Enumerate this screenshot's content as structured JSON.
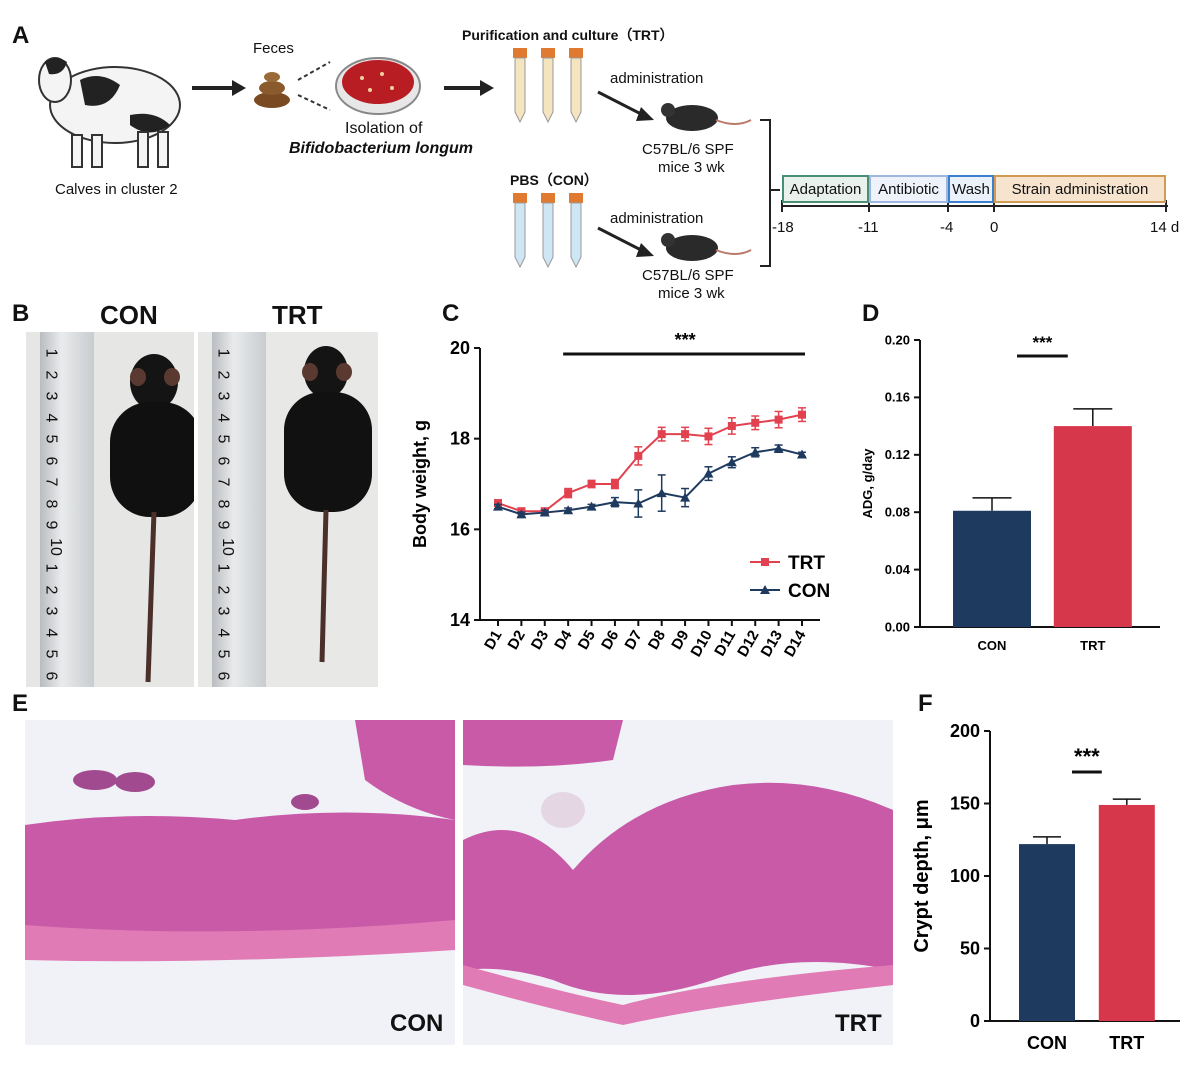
{
  "panel_labels": {
    "a": "A",
    "b": "B",
    "c": "C",
    "d": "D",
    "e": "E",
    "f": "F"
  },
  "panel_a": {
    "calves_label": "Calves in cluster 2",
    "feces_label": "Feces",
    "isolation_line1": "Isolation of",
    "isolation_line2": "Bifidobacterium longum",
    "purification_label": "Purification and culture（TRT）",
    "pbs_label": "PBS（CON）",
    "administration_top": "administration",
    "administration_bottom": "administration",
    "mice_top_line1": "C57BL/6 SPF",
    "mice_top_line2": "mice 3 wk",
    "mice_bottom_line1": "C57BL/6 SPF",
    "mice_bottom_line2": "mice 3 wk",
    "timeline": {
      "phases": [
        {
          "label": "Adaptation",
          "color": "#4a8f73",
          "fill": "#e8f1ec"
        },
        {
          "label": "Antibiotic",
          "color": "#9fb6e0",
          "fill": "#eef2fa"
        },
        {
          "label": "Wash",
          "color": "#3d7fcf",
          "fill": "#eaf1fb"
        },
        {
          "label": "Strain administration",
          "color": "#d19a55",
          "fill": "#f7e4cf"
        }
      ],
      "ticks": [
        "-18",
        "-11",
        "-4",
        "0",
        "14 d"
      ]
    }
  },
  "panel_b": {
    "con_title": "CON",
    "trt_title": "TRT",
    "ruler_marks": [
      "1",
      "2",
      "3",
      "4",
      "5",
      "6",
      "7",
      "8",
      "9",
      "10",
      "1",
      "2",
      "3",
      "4",
      "5",
      "6"
    ]
  },
  "panel_e": {
    "con_label": "CON",
    "trt_label": "TRT"
  },
  "chart_data": [
    {
      "type": "line",
      "panel": "C",
      "ylabel": "Body weight, g",
      "ylim": [
        14,
        20
      ],
      "yticks": [
        14,
        16,
        18,
        20
      ],
      "categories": [
        "D1",
        "D2",
        "D3",
        "D4",
        "D5",
        "D6",
        "D7",
        "D8",
        "D9",
        "D10",
        "D11",
        "D12",
        "D13",
        "D14"
      ],
      "significance": "***",
      "legend_position": "right",
      "series": [
        {
          "name": "TRT",
          "color": "#e2424f",
          "marker": "square",
          "values": [
            16.58,
            16.4,
            16.4,
            16.8,
            17.0,
            17.0,
            17.62,
            18.1,
            18.1,
            18.05,
            18.28,
            18.35,
            18.42,
            18.53
          ],
          "errors": [
            0.05,
            0.05,
            0.05,
            0.1,
            0.08,
            0.1,
            0.2,
            0.15,
            0.15,
            0.18,
            0.18,
            0.15,
            0.18,
            0.15
          ]
        },
        {
          "name": "CON",
          "color": "#1f3a5f",
          "marker": "triangle",
          "values": [
            16.5,
            16.33,
            16.37,
            16.42,
            16.5,
            16.6,
            16.57,
            16.8,
            16.7,
            17.23,
            17.48,
            17.7,
            17.78,
            17.65
          ],
          "errors": [
            0.05,
            0.05,
            0.05,
            0.05,
            0.05,
            0.1,
            0.3,
            0.4,
            0.2,
            0.15,
            0.12,
            0.1,
            0.08,
            0.05
          ]
        }
      ]
    },
    {
      "type": "bar",
      "panel": "D",
      "ylabel": "ADG, g/day",
      "ylim": [
        0,
        0.2
      ],
      "yticks": [
        "0.00",
        "0.04",
        "0.08",
        "0.12",
        "0.16",
        "0.20"
      ],
      "categories": [
        "CON",
        "TRT"
      ],
      "values": [
        0.081,
        0.14
      ],
      "errors": [
        0.009,
        0.012
      ],
      "colors": [
        "#1f3a5f",
        "#d7374a"
      ],
      "significance": "***"
    },
    {
      "type": "bar",
      "panel": "F",
      "ylabel": "Crypt depth, μm",
      "ylim": [
        0,
        200
      ],
      "yticks": [
        "0",
        "50",
        "100",
        "150",
        "200"
      ],
      "categories": [
        "CON",
        "TRT"
      ],
      "values": [
        122,
        149
      ],
      "errors": [
        5,
        4
      ],
      "colors": [
        "#1f3a5f",
        "#d7374a"
      ],
      "significance": "***"
    }
  ]
}
